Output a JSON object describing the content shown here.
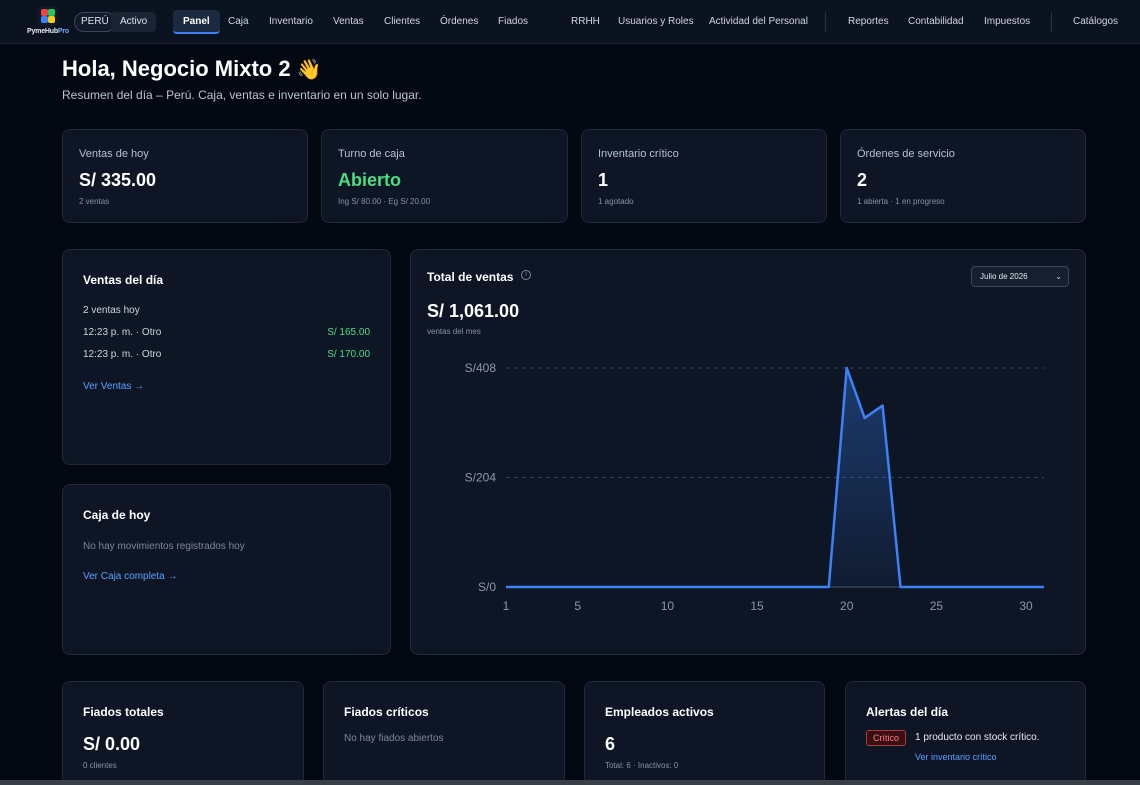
{
  "nav": {
    "brand_part1": "PymeHub",
    "brand_part2": "Pro",
    "country": "PERÚ",
    "status": "Activo",
    "items": [
      {
        "label": "Panel",
        "active": true
      },
      {
        "label": "Caja"
      },
      {
        "label": "Inventario"
      },
      {
        "label": "Ventas"
      },
      {
        "label": "Clientes"
      },
      {
        "label": "Órdenes"
      },
      {
        "label": "Fiados"
      },
      {
        "label": "RRHH"
      },
      {
        "label": "Usuarios y Roles"
      },
      {
        "label": "Actividad del Personal"
      },
      {
        "label": "Reportes"
      },
      {
        "label": "Contabilidad"
      },
      {
        "label": "Impuestos"
      },
      {
        "label": "Catálogos"
      }
    ]
  },
  "greeting": {
    "title": "Hola, Negocio Mixto 2",
    "emoji": "👋",
    "subtitle": "Resumen del día – Perú. Caja, ventas e inventario en un solo lugar."
  },
  "stats": [
    {
      "label": "Ventas de hoy",
      "value": "S/ 335.00",
      "sub": "2 ventas"
    },
    {
      "label": "Turno de caja",
      "value": "Abierto",
      "sub": "Ing S/ 80.00 · Eg S/ 20.00"
    },
    {
      "label": "Inventario crítico",
      "value": "1",
      "sub": "1 agotado"
    },
    {
      "label": "Órdenes de servicio",
      "value": "2",
      "sub": "1 abierta · 1 en progreso"
    }
  ],
  "sales_day": {
    "title": "Ventas del día",
    "count": "2 ventas hoy",
    "rows": [
      {
        "time": "12:23 p. m. · Otro",
        "amount": "S/ 165.00"
      },
      {
        "time": "12:23 p. m. · Otro",
        "amount": "S/ 170.00"
      }
    ],
    "link": "Ver Ventas →"
  },
  "cash_today": {
    "title": "Caja de hoy",
    "empty": "No hay movimientos registrados hoy",
    "link": "Ver Caja completa →"
  },
  "total_sales": {
    "title": "Total de ventas",
    "info_glyph": "i",
    "month": "Julio de 2026",
    "amount": "S/ 1,061.00",
    "sub": "ventas del mes"
  },
  "chart_data": {
    "type": "area",
    "x": [
      1,
      2,
      3,
      4,
      5,
      6,
      7,
      8,
      9,
      10,
      11,
      12,
      13,
      14,
      15,
      16,
      17,
      18,
      19,
      20,
      21,
      22,
      23,
      24,
      25,
      26,
      27,
      28,
      29,
      30,
      31
    ],
    "series": [
      {
        "values": [
          0,
          0,
          0,
          0,
          0,
          0,
          0,
          0,
          0,
          0,
          0,
          0,
          0,
          0,
          0,
          0,
          0,
          0,
          0,
          408,
          315,
          338,
          0,
          0,
          0,
          0,
          0,
          0,
          0,
          0,
          0
        ]
      }
    ],
    "xticks": [
      1,
      5,
      10,
      15,
      20,
      25,
      30
    ],
    "yticks": [
      0,
      204,
      408
    ],
    "ytick_labels": [
      "S/0",
      "S/204",
      "S/408"
    ],
    "ylim": [
      0,
      408
    ],
    "xlim": [
      1,
      31
    ],
    "grid": true,
    "line_color": "#3b82f6"
  },
  "bottom": {
    "fiados_total": {
      "title": "Fiados totales",
      "value": "S/ 0.00",
      "sub": "0 clientes"
    },
    "fiados_criticos": {
      "title": "Fiados críticos",
      "empty": "No hay fiados abiertos"
    },
    "empleados": {
      "title": "Empleados activos",
      "value": "6",
      "sub": "Total: 6 · Inactivos: 0"
    },
    "alertas": {
      "title": "Alertas del día",
      "badge": "Crítico",
      "text": "1 producto con stock crítico.",
      "link": "Ver inventario crítico"
    }
  }
}
